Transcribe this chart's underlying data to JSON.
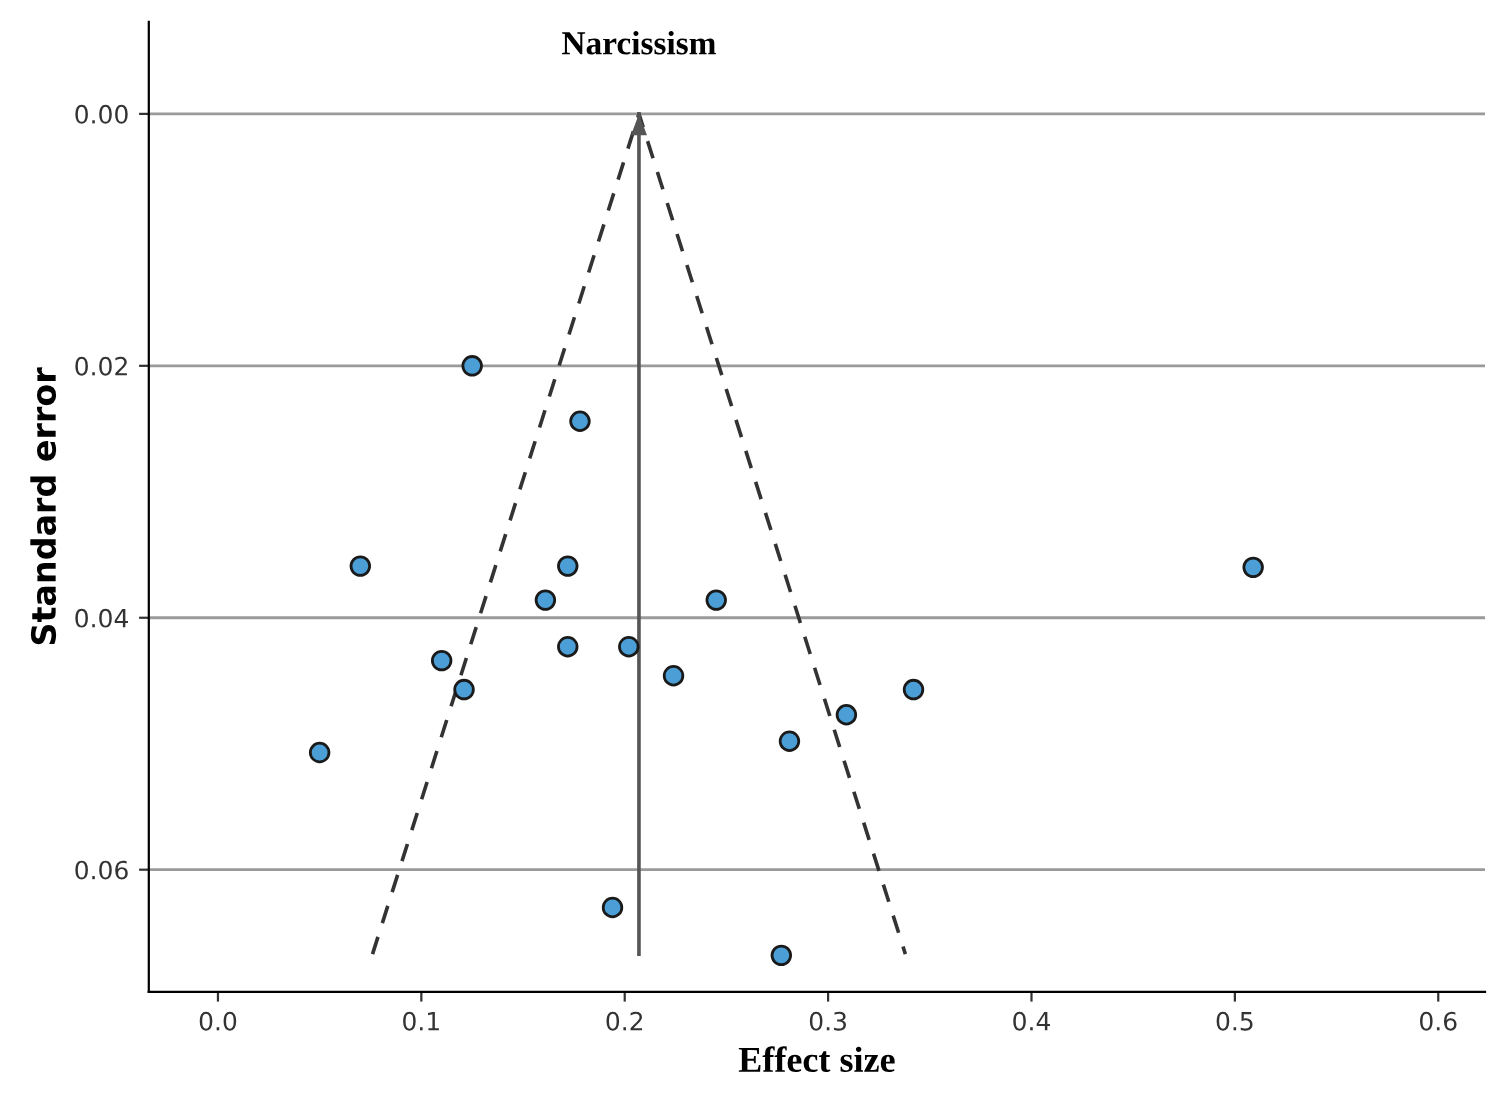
{
  "chart_data": {
    "type": "scatter",
    "title": "Narcissism",
    "xlabel": "Effect size",
    "ylabel": "Standard error",
    "xlim": [
      -0.034,
      0.623
    ],
    "ylim": [
      0.0697,
      -0.0073
    ],
    "xticks": [
      {
        "value": 0,
        "label": "0.0"
      },
      0.1,
      0.2,
      0.3,
      0.4,
      0.5,
      0.6
    ],
    "yticks": [
      {
        "value": 0,
        "label": "0.00"
      },
      0.02,
      0.04,
      0.06
    ],
    "grid": "y",
    "marker": "circle",
    "series": [
      {
        "color": "#4b9fd6",
        "x": [
          0.125,
          0.178,
          0.07,
          0.172,
          0.161,
          0.245,
          0.172,
          0.202,
          0.11,
          0.121,
          0.224,
          0.342,
          0.309,
          0.281,
          0.05,
          0.194,
          0.277,
          0.509
        ],
        "values": [
          0.02,
          0.0244,
          0.0359,
          0.0359,
          0.0386,
          0.0386,
          0.0423,
          0.0423,
          0.0434,
          0.0457,
          0.0446,
          0.0457,
          0.0477,
          0.0498,
          0.0507,
          0.063,
          0.0668,
          0.036
        ]
      },
      {
        "type": "line",
        "color": "#333333",
        "line_style": "dashed",
        "marker": "none",
        "x": [
          0.076,
          0.207,
          0.338
        ],
        "values": [
          0.0667,
          0.0,
          0.0667
        ]
      },
      {
        "type": "line",
        "color": "#555555",
        "line_style": "solid",
        "marker": "none",
        "x": [
          0.207,
          0.207
        ],
        "values": [
          0.0667,
          0.0
        ]
      }
    ]
  }
}
